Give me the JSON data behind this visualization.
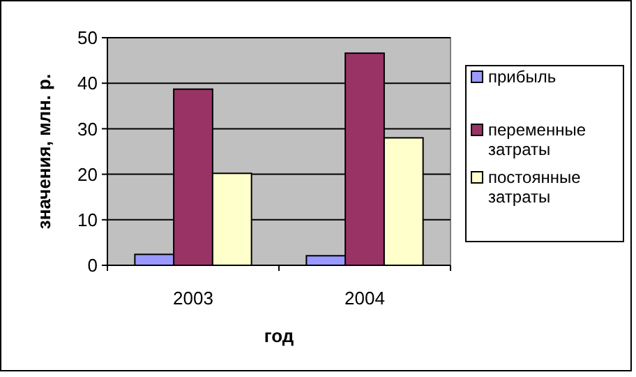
{
  "chart_data": {
    "type": "bar",
    "xlabel": "год",
    "ylabel": "значения, млн. р.",
    "categories": [
      "2003",
      "2004"
    ],
    "series": [
      {
        "name": "прибыль",
        "color": "#9999ff",
        "values": [
          2.4,
          2.1
        ]
      },
      {
        "name": "переменные затраты",
        "color": "#993366",
        "values": [
          38.7,
          46.6
        ]
      },
      {
        "name": "постоянные затраты",
        "color": "#ffffcc",
        "values": [
          20.2,
          28.0
        ]
      }
    ],
    "ylim": [
      0,
      50
    ],
    "yticks": [
      0,
      10,
      20,
      30,
      40,
      50
    ],
    "grid": "y",
    "legend": "right"
  }
}
